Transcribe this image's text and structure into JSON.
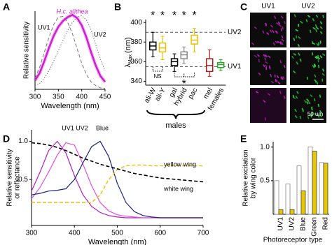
{
  "chart_data": [
    {
      "type": "line",
      "panel": "A",
      "x_label": "Wavelength (nm)",
      "y_label": "Relative sensitivity",
      "x": [
        300,
        310,
        320,
        330,
        340,
        350,
        360,
        370,
        380,
        390,
        400,
        410,
        420,
        430,
        440,
        450
      ],
      "xlim": [
        300,
        450
      ],
      "xticks": [
        300,
        350,
        400,
        450
      ],
      "ylim": [
        0,
        1.05
      ],
      "series": [
        {
          "name": "UV1",
          "color": "#777777",
          "dash": "dashed",
          "values": [
            0.15,
            0.3,
            0.5,
            0.7,
            0.87,
            0.97,
            0.98,
            0.9,
            0.75,
            0.55,
            0.35,
            0.2,
            0.1,
            0.05,
            0.02,
            0.01
          ]
        },
        {
          "name": "UV2",
          "color": "#777777",
          "dash": "dotted",
          "values": [
            0.05,
            0.08,
            0.15,
            0.25,
            0.38,
            0.52,
            0.66,
            0.79,
            0.9,
            0.97,
            0.99,
            0.93,
            0.8,
            0.6,
            0.4,
            0.25
          ]
        },
        {
          "name": "H.c. alithea",
          "color": "#cc22cc",
          "dash": "solid",
          "values": [
            0.12,
            0.22,
            0.38,
            0.56,
            0.72,
            0.84,
            0.92,
            0.97,
            1.0,
            0.96,
            0.86,
            0.7,
            0.5,
            0.32,
            0.18,
            0.1
          ]
        }
      ]
    },
    {
      "type": "box",
      "panel": "B",
      "y_label": {
        "symbol": "λ",
        "subscript": "Max",
        "unit": "(nm)"
      },
      "categories": [
        "ali-W",
        "ali-Y",
        "gal",
        "hybrid",
        "pac",
        "mel",
        "females"
      ],
      "colors": [
        "#000000",
        "#e6c200",
        "#000000",
        "#888888",
        "#e6c200",
        "#b01c1c",
        "#2aa82a"
      ],
      "boxes": [
        [
          365,
          372,
          376,
          380,
          390
        ],
        [
          362,
          370,
          374,
          379,
          386
        ],
        [
          350,
          356,
          360,
          363,
          368
        ],
        [
          358,
          363,
          367,
          370,
          375
        ],
        [
          370,
          378,
          382,
          387,
          394
        ],
        [
          345,
          350,
          356,
          363,
          372
        ],
        [
          351,
          354,
          357,
          359,
          362
        ]
      ],
      "significance": [
        "*",
        "*",
        "*",
        "*",
        "*",
        null,
        null
      ],
      "comparison_labels": [
        "NS",
        "*"
      ],
      "group_label": "males",
      "reference_lines": [
        {
          "label": "UV2",
          "value": 390
        },
        {
          "label": "UV1",
          "value": 355
        }
      ],
      "ylim": [
        336,
        403
      ],
      "yticks": [
        340,
        360,
        380,
        400
      ]
    },
    {
      "type": "line",
      "panel": "D",
      "x_label": "Wavelength (nm)",
      "y_label": [
        "Relative sensitivity",
        "or reflectance"
      ],
      "x": [
        300,
        320,
        340,
        360,
        380,
        400,
        420,
        440,
        460,
        480,
        500,
        520,
        540,
        560,
        580,
        600,
        620,
        640,
        660,
        680,
        700
      ],
      "xlim": [
        300,
        700
      ],
      "xticks": [
        300,
        400,
        500,
        600,
        700
      ],
      "ylim": [
        -0.1,
        1.15
      ],
      "yticks": [
        0.5,
        {
          "value": 1,
          "label": "1.0"
        }
      ],
      "series": [
        {
          "name": "UV1",
          "color": "#b01cc0",
          "dash": "solid",
          "values": [
            0.35,
            0.6,
            0.88,
            1.0,
            0.85,
            0.55,
            0.3,
            0.15,
            0.07,
            0.03,
            0.01,
            0,
            0,
            0,
            0,
            0,
            0,
            0,
            0,
            0,
            0
          ]
        },
        {
          "name": "UV2",
          "color": "#e050e0",
          "dash": "solid",
          "values": [
            0.25,
            0.4,
            0.6,
            0.82,
            0.98,
            0.95,
            0.7,
            0.42,
            0.2,
            0.09,
            0.04,
            0.02,
            0.01,
            0,
            0,
            0,
            0,
            0,
            0,
            0,
            0
          ]
        },
        {
          "name": "Blue",
          "color": "#1a237e",
          "dash": "solid",
          "values": [
            0.3,
            0.32,
            0.35,
            0.36,
            0.38,
            0.5,
            0.72,
            0.93,
            1.0,
            0.8,
            0.45,
            0.2,
            0.08,
            0.03,
            0.01,
            0,
            0,
            0,
            0,
            0,
            0
          ]
        },
        {
          "name": "yellow wing",
          "color": "#f0c419",
          "dash": "dashed",
          "values": [
            0.2,
            0.2,
            0.2,
            0.2,
            0.2,
            0.2,
            0.2,
            0.2,
            0.3,
            0.5,
            0.63,
            0.68,
            0.69,
            0.69,
            0.68,
            0.68,
            0.68,
            0.68,
            0.68,
            0.68,
            0.68
          ]
        },
        {
          "name": "white wing",
          "color": "#000000",
          "dash": "dashed",
          "values": [
            0.98,
            0.97,
            0.95,
            0.92,
            0.88,
            0.83,
            0.78,
            0.74,
            0.7,
            0.67,
            0.64,
            0.61,
            0.58,
            0.56,
            0.54,
            0.52,
            0.51,
            0.5,
            0.49,
            0.48,
            0.47
          ]
        }
      ]
    },
    {
      "type": "bar",
      "panel": "E",
      "x_label": "Photoreceptor type",
      "y_label": [
        "Relative excitation",
        "by wing color"
      ],
      "categories": [
        "UV1",
        "UV2",
        "Blue",
        "Green",
        "Red"
      ],
      "ylim": [
        0,
        1.08
      ],
      "yticks": [
        0.5,
        {
          "value": 1,
          "label": "1.0"
        }
      ],
      "series": [
        {
          "color": "#ffffff",
          "values": [
            0.5,
            0.45,
            0.72,
            1.0,
            0.77
          ]
        },
        {
          "color": "#e6c800",
          "values": [
            0.07,
            0.07,
            0.35,
            0.94,
            0.76
          ]
        }
      ]
    }
  ],
  "panel_c": {
    "panel": "C",
    "columns": [
      "UV1",
      "UV2"
    ],
    "scale_bar": "50 um"
  }
}
